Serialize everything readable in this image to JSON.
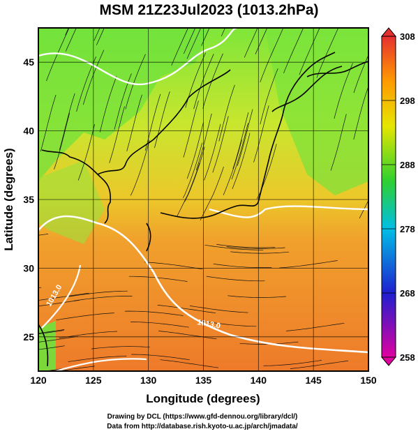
{
  "title": "MSM 21Z23Jul2023 (1013.2hPa)",
  "map": {
    "lon_range": [
      120,
      150
    ],
    "lat_range": [
      22.5,
      47.5
    ],
    "x_ticks": [
      "120",
      "125",
      "130",
      "135",
      "140",
      "145",
      "150"
    ],
    "y_ticks": [
      "25",
      "30",
      "35",
      "40",
      "45"
    ],
    "xlabel": "Longitude (degrees)",
    "ylabel": "Latitude  (degrees)",
    "gridlines": true,
    "streamlines": true,
    "isotherm_labels": [
      "1013.0",
      "1013.0"
    ]
  },
  "colorbar": {
    "range": [
      258,
      308
    ],
    "tick_labels": [
      "308",
      "298",
      "288",
      "278",
      "268",
      "258"
    ],
    "colors": [
      "#e0008c",
      "#1f1fcf",
      "#00bfe6",
      "#2fd02f",
      "#f2f200",
      "#ff8c00",
      "#e63030"
    ]
  },
  "credits": {
    "line1": "Drawing by DCL (https://www.gfd-dennou.org/library/dcl/)",
    "line2": "Data from http://database.rish.kyoto-u.ac.jp/arch/jmadata/"
  }
}
